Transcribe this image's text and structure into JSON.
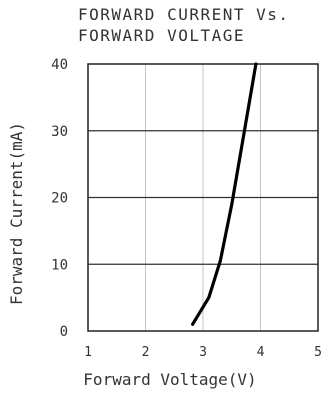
{
  "chart_data": {
    "type": "line",
    "title_lines": [
      "FORWARD CURRENT Vs.",
      "FORWARD VOLTAGE"
    ],
    "xlabel": "Forward Voltage(V)",
    "ylabel": "Forward Current(mA)",
    "xlim": [
      1,
      5
    ],
    "ylim": [
      0,
      40
    ],
    "x_ticks": [
      1,
      2,
      3,
      4,
      5
    ],
    "y_ticks": [
      0,
      10,
      20,
      30,
      40
    ],
    "grid": true,
    "series": [
      {
        "color": "#000000",
        "x": [
          2.82,
          3.1,
          3.3,
          3.5,
          3.7,
          3.92
        ],
        "y": [
          1,
          5,
          10.5,
          19,
          29,
          40
        ]
      }
    ]
  }
}
